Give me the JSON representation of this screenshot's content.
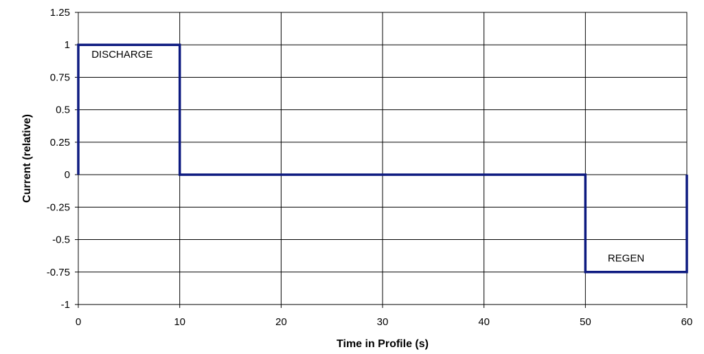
{
  "chart_data": {
    "type": "line",
    "xlabel": "Time in Profile (s)",
    "ylabel": "Current (relative)",
    "xlim": [
      0,
      60
    ],
    "ylim": [
      -1,
      1.25
    ],
    "x_ticks": [
      0,
      10,
      20,
      30,
      40,
      50,
      60
    ],
    "y_ticks": [
      1.25,
      1,
      0.75,
      0.5,
      0.25,
      0,
      -0.25,
      -0.5,
      -0.75,
      -1
    ],
    "grid": true,
    "series": [
      {
        "color": "#0d1a80",
        "points": [
          {
            "x": 0,
            "y": 0
          },
          {
            "x": 0,
            "y": 1
          },
          {
            "x": 10,
            "y": 1
          },
          {
            "x": 10,
            "y": 0
          },
          {
            "x": 50,
            "y": 0
          },
          {
            "x": 50,
            "y": -0.75
          },
          {
            "x": 60,
            "y": -0.75
          },
          {
            "x": 60,
            "y": 0
          }
        ]
      }
    ],
    "annotations": [
      {
        "text": "DISCHARGE",
        "x": 1.3,
        "y": 0.9
      },
      {
        "text": "REGEN",
        "x": 52.2,
        "y": -0.67
      }
    ]
  }
}
